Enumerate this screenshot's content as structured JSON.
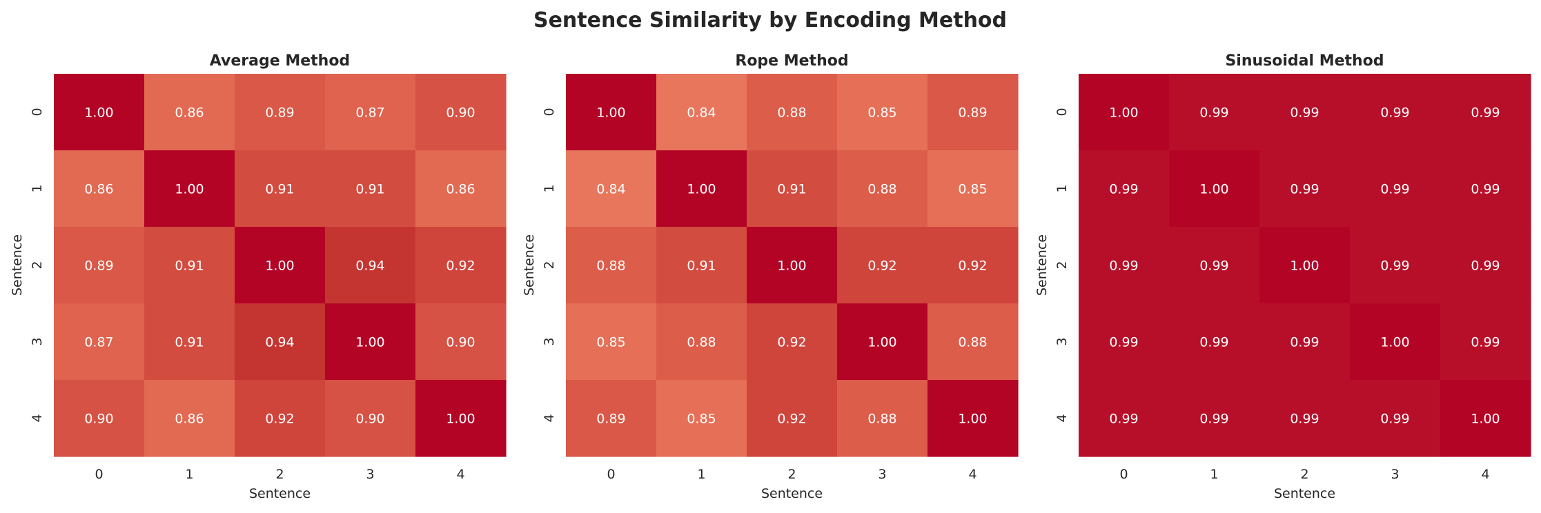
{
  "chart_data": {
    "type": "heatmap",
    "title": "Sentence Similarity by Encoding Method",
    "colormap": {
      "stops": [
        {
          "value": 0.8,
          "color": "#f08a6c"
        },
        {
          "value": 0.84,
          "color": "#e8765c"
        },
        {
          "value": 0.86,
          "color": "#e26952"
        },
        {
          "value": 0.88,
          "color": "#dc5d4a"
        },
        {
          "value": 0.9,
          "color": "#d65244"
        },
        {
          "value": 0.92,
          "color": "#cf453c"
        },
        {
          "value": 0.94,
          "color": "#c43532"
        },
        {
          "value": 0.99,
          "color": "#b70f29"
        },
        {
          "value": 1.0,
          "color": "#b40426"
        }
      ],
      "text_color": "#ffffff"
    },
    "panels": [
      {
        "title": "Average Method",
        "xlabel": "Sentence",
        "ylabel": "Sentence",
        "xticks": [
          "0",
          "1",
          "2",
          "3",
          "4"
        ],
        "yticks": [
          "0",
          "1",
          "2",
          "3",
          "4"
        ],
        "values": [
          [
            1.0,
            0.86,
            0.89,
            0.87,
            0.9
          ],
          [
            0.86,
            1.0,
            0.91,
            0.91,
            0.86
          ],
          [
            0.89,
            0.91,
            1.0,
            0.94,
            0.92
          ],
          [
            0.87,
            0.91,
            0.94,
            1.0,
            0.9
          ],
          [
            0.9,
            0.86,
            0.92,
            0.9,
            1.0
          ]
        ]
      },
      {
        "title": "Rope Method",
        "xlabel": "Sentence",
        "ylabel": "Sentence",
        "xticks": [
          "0",
          "1",
          "2",
          "3",
          "4"
        ],
        "yticks": [
          "0",
          "1",
          "2",
          "3",
          "4"
        ],
        "values": [
          [
            1.0,
            0.84,
            0.88,
            0.85,
            0.89
          ],
          [
            0.84,
            1.0,
            0.91,
            0.88,
            0.85
          ],
          [
            0.88,
            0.91,
            1.0,
            0.92,
            0.92
          ],
          [
            0.85,
            0.88,
            0.92,
            1.0,
            0.88
          ],
          [
            0.89,
            0.85,
            0.92,
            0.88,
            1.0
          ]
        ]
      },
      {
        "title": "Sinusoidal Method",
        "xlabel": "Sentence",
        "ylabel": "Sentence",
        "xticks": [
          "0",
          "1",
          "2",
          "3",
          "4"
        ],
        "yticks": [
          "0",
          "1",
          "2",
          "3",
          "4"
        ],
        "values": [
          [
            1.0,
            0.99,
            0.99,
            0.99,
            0.99
          ],
          [
            0.99,
            1.0,
            0.99,
            0.99,
            0.99
          ],
          [
            0.99,
            0.99,
            1.0,
            0.99,
            0.99
          ],
          [
            0.99,
            0.99,
            0.99,
            1.0,
            0.99
          ],
          [
            0.99,
            0.99,
            0.99,
            0.99,
            1.0
          ]
        ]
      }
    ]
  }
}
